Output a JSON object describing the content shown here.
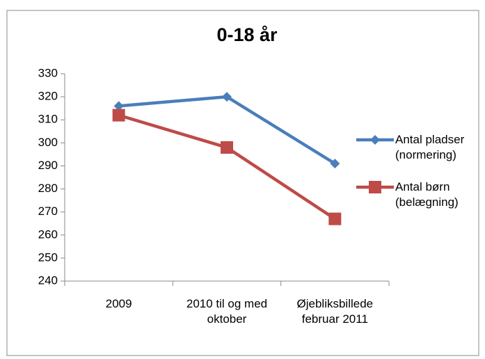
{
  "chart_data": {
    "type": "line",
    "title": "0-18 år",
    "categories": [
      "2009",
      "2010 til og med oktober",
      "Øjebliksbillede februar 2011"
    ],
    "series": [
      {
        "name": "Antal pladser (normering)",
        "color": "#4a7ebb",
        "marker": "diamond",
        "values": [
          316,
          320,
          291
        ]
      },
      {
        "name": "Antal børn (belægning)",
        "color": "#be4b48",
        "marker": "square",
        "values": [
          312,
          298,
          267
        ]
      }
    ],
    "ylim": [
      240,
      330
    ],
    "yticks": [
      240,
      250,
      260,
      270,
      280,
      290,
      300,
      310,
      320,
      330
    ],
    "grid": false,
    "legend": "right"
  }
}
